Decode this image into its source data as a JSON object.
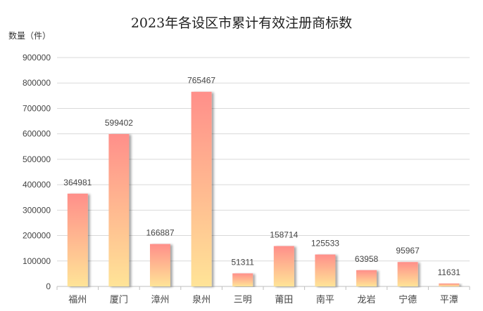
{
  "chart_data": {
    "type": "bar",
    "title": "2023年各设区市累计有效注册商标数",
    "ylabel": "数量（件）",
    "xlabel": "",
    "categories": [
      "福州",
      "厦门",
      "漳州",
      "泉州",
      "三明",
      "莆田",
      "南平",
      "龙岩",
      "宁德",
      "平潭"
    ],
    "values": [
      364981,
      599402,
      166887,
      765467,
      51311,
      158714,
      125533,
      63958,
      95967,
      11631
    ],
    "ylim": [
      0,
      900000
    ],
    "yticks": [
      0,
      100000,
      200000,
      300000,
      400000,
      500000,
      600000,
      700000,
      800000,
      900000
    ],
    "grid": true,
    "legend": "none",
    "colors": {
      "bar_top": "#ff8f8a",
      "bar_bottom": "#ffe497",
      "grid": "#d9d9d9",
      "axis": "#bfbfbf"
    }
  }
}
